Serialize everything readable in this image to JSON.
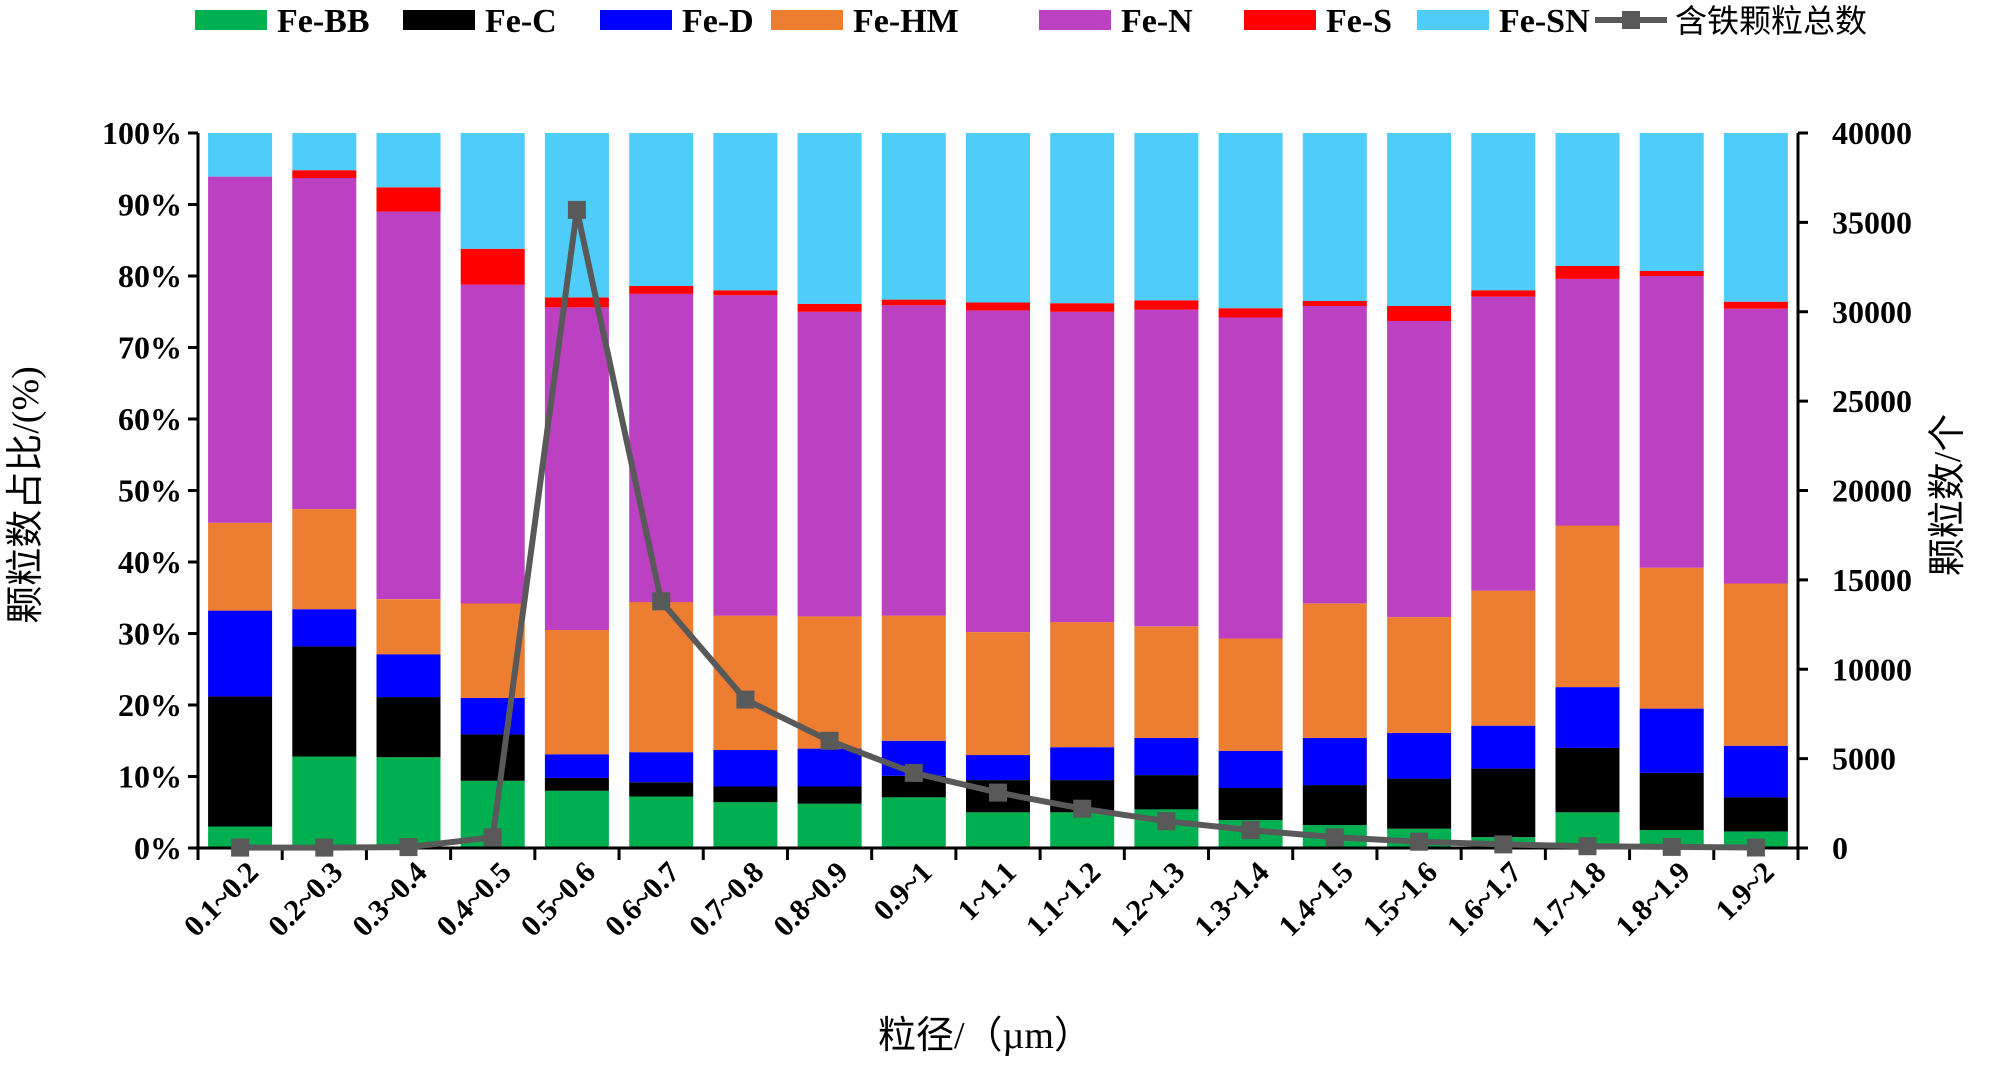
{
  "chart_data": {
    "type": "bar",
    "stacked": true,
    "categories": [
      "0.1~0.2",
      "0.2~0.3",
      "0.3~0.4",
      "0.4~0.5",
      "0.5~0.6",
      "0.6~0.7",
      "0.7~0.8",
      "0.8~0.9",
      "0.9~1",
      "1~1.1",
      "1.1~1.2",
      "1.2~1.3",
      "1.3~1.4",
      "1.4~1.5",
      "1.5~1.6",
      "1.6~1.7",
      "1.7~1.8",
      "1.8~1.9",
      "1.9~2"
    ],
    "series": [
      {
        "name": "Fe-BB",
        "color": "#00b050",
        "values": [
          3,
          12.8,
          12.7,
          9.4,
          8,
          7.2,
          6.4,
          6.2,
          7.1,
          5,
          5,
          5.4,
          3.9,
          3.2,
          2.7,
          1.5,
          5,
          2.5,
          2.3
        ]
      },
      {
        "name": "Fe-C",
        "color": "#000000",
        "values": [
          18.2,
          15.4,
          8.4,
          6.5,
          1.8,
          2,
          2.2,
          2.4,
          3,
          4.5,
          4.5,
          4.8,
          4.5,
          5.6,
          7,
          9.6,
          9,
          8,
          4.8
        ]
      },
      {
        "name": "Fe-D",
        "color": "#0000ff",
        "values": [
          12,
          5.2,
          6,
          5.1,
          3.3,
          4.2,
          5.1,
          5.3,
          4.9,
          3.5,
          4.6,
          5.2,
          5.2,
          6.6,
          6.4,
          6,
          8.5,
          9,
          7.2
        ]
      },
      {
        "name": "Fe-HM",
        "color": "#ed7d31",
        "values": [
          12.3,
          14,
          7.7,
          13.2,
          17.4,
          21,
          18.8,
          18.5,
          17.5,
          17.2,
          17.5,
          15.6,
          15.7,
          18.8,
          16.2,
          18.9,
          22.6,
          19.7,
          22.7
        ]
      },
      {
        "name": "Fe-N",
        "color": "#bb40c2",
        "values": [
          48.4,
          46.3,
          54.2,
          44.6,
          45.1,
          43.1,
          44.8,
          42.6,
          43.4,
          45,
          43.4,
          44.3,
          44.9,
          41.6,
          41.4,
          41.1,
          34.5,
          40.8,
          38.4
        ]
      },
      {
        "name": "Fe-S",
        "color": "#ff0000",
        "values": [
          0,
          1.1,
          3.4,
          5,
          1.4,
          1.1,
          0.7,
          1.1,
          0.8,
          1.1,
          1.2,
          1.3,
          1.3,
          0.7,
          2.1,
          0.9,
          1.8,
          0.7,
          1
        ]
      },
      {
        "name": "Fe-SN",
        "color": "#4ecdfa",
        "values": [
          6.1,
          5.2,
          7.6,
          16.2,
          23,
          21.4,
          22,
          23.9,
          23.3,
          23.7,
          23.8,
          23.4,
          24.5,
          23.5,
          24.2,
          22,
          18.6,
          19.3,
          23.6
        ]
      }
    ],
    "line_series": {
      "name": "含铁颗粒总数",
      "color": "#595959",
      "values": [
        20,
        20,
        50,
        600,
        35700,
        13800,
        8300,
        6000,
        4200,
        3100,
        2200,
        1500,
        1000,
        600,
        350,
        200,
        100,
        60,
        30
      ]
    },
    "xlabel": "粒径/（µm）",
    "ylabel": "颗粒数占比/(%)",
    "y2label": "颗粒数/个",
    "ylim": [
      0,
      100
    ],
    "y2lim": [
      0,
      40000
    ],
    "yticks": [
      "0%",
      "10%",
      "20%",
      "30%",
      "40%",
      "50%",
      "60%",
      "70%",
      "80%",
      "90%",
      "100%"
    ],
    "y2ticks": [
      "0",
      "5000",
      "10000",
      "15000",
      "20000",
      "25000",
      "30000",
      "35000",
      "40000"
    ],
    "legend_position": "top"
  }
}
